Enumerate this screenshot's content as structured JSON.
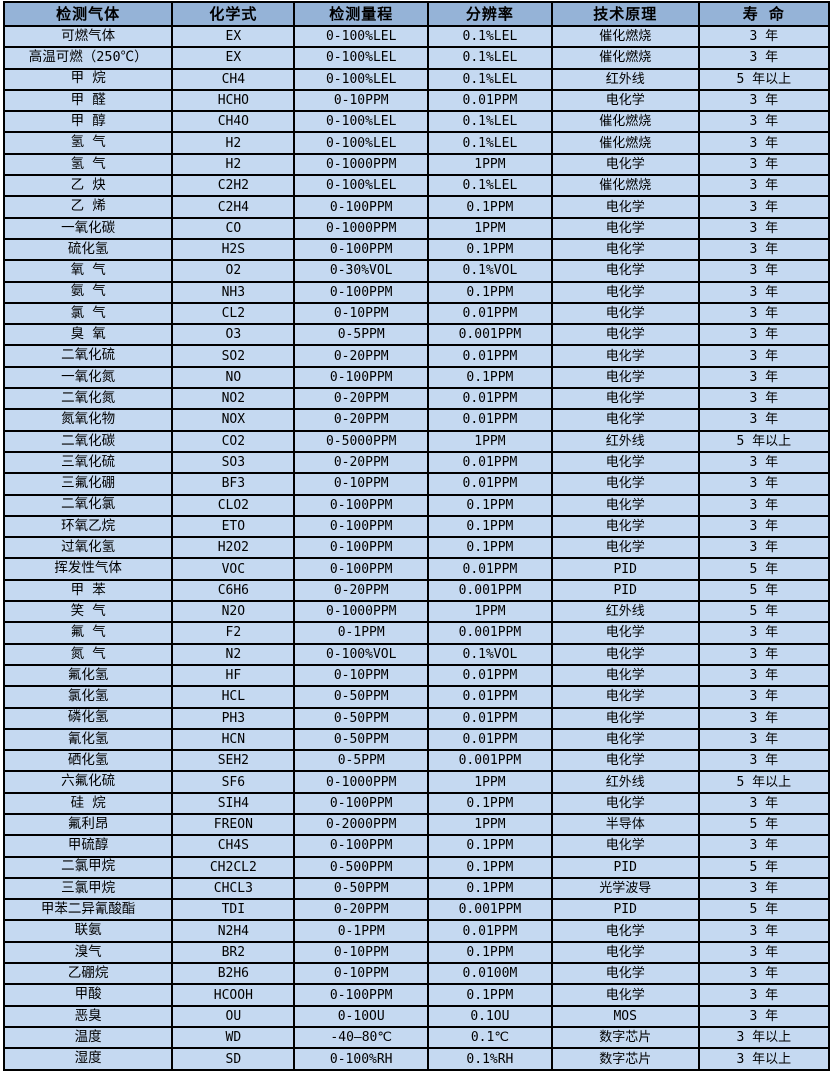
{
  "colors": {
    "header_bg": "#95b3d7",
    "row_bg": "#c5d9f1",
    "grid_border": "#000000",
    "text": "#000000"
  },
  "table": {
    "columns": [
      "检测气体",
      "化学式",
      "检测量程",
      "分辨率",
      "技术原理",
      "寿 命"
    ],
    "column_widths_pct": [
      20.4,
      14.8,
      16.2,
      15.0,
      17.8,
      15.8
    ],
    "rows": [
      [
        "可燃气体",
        "EX",
        "0-100%LEL",
        "0.1%LEL",
        "催化燃烧",
        "3 年"
      ],
      [
        "高温可燃（250℃）",
        "EX",
        "0-100%LEL",
        "0.1%LEL",
        "催化燃烧",
        "3 年"
      ],
      [
        "甲 烷",
        "CH4",
        "0-100%LEL",
        "0.1%LEL",
        "红外线",
        "5 年以上"
      ],
      [
        "甲 醛",
        "HCHO",
        "0-10PPM",
        "0.01PPM",
        "电化学",
        "3 年"
      ],
      [
        "甲 醇",
        "CH4O",
        "0-100%LEL",
        "0.1%LEL",
        "催化燃烧",
        "3 年"
      ],
      [
        "氢 气",
        "H2",
        "0-100%LEL",
        "0.1%LEL",
        "催化燃烧",
        "3 年"
      ],
      [
        "氢 气",
        "H2",
        "0-1000PPM",
        "1PPM",
        "电化学",
        "3 年"
      ],
      [
        "乙 炔",
        "C2H2",
        "0-100%LEL",
        "0.1%LEL",
        "催化燃烧",
        "3 年"
      ],
      [
        "乙 烯",
        "C2H4",
        "0-100PPM",
        "0.1PPM",
        "电化学",
        "3 年"
      ],
      [
        "一氧化碳",
        "CO",
        "0-1000PPM",
        "1PPM",
        "电化学",
        "3 年"
      ],
      [
        "硫化氢",
        "H2S",
        "0-100PPM",
        "0.1PPM",
        "电化学",
        "3 年"
      ],
      [
        "氧 气",
        "O2",
        "0-30%VOL",
        "0.1%VOL",
        "电化学",
        "3 年"
      ],
      [
        "氨 气",
        "NH3",
        "0-100PPM",
        "0.1PPM",
        "电化学",
        "3 年"
      ],
      [
        "氯 气",
        "CL2",
        "0-10PPM",
        "0.01PPM",
        "电化学",
        "3 年"
      ],
      [
        "臭 氧",
        "O3",
        "0-5PPM",
        "0.001PPM",
        "电化学",
        "3 年"
      ],
      [
        "二氧化硫",
        "SO2",
        "0-20PPM",
        "0.01PPM",
        "电化学",
        "3 年"
      ],
      [
        "一氧化氮",
        "NO",
        "0-100PPM",
        "0.1PPM",
        "电化学",
        "3 年"
      ],
      [
        "二氧化氮",
        "NO2",
        "0-20PPM",
        "0.01PPM",
        "电化学",
        "3 年"
      ],
      [
        "氮氧化物",
        "NOX",
        "0-20PPM",
        "0.01PPM",
        "电化学",
        "3 年"
      ],
      [
        "二氧化碳",
        "CO2",
        "0-5000PPM",
        "1PPM",
        "红外线",
        "5 年以上"
      ],
      [
        "三氧化硫",
        "SO3",
        "0-20PPM",
        "0.01PPM",
        "电化学",
        "3 年"
      ],
      [
        "三氟化硼",
        "BF3",
        "0-10PPM",
        "0.01PPM",
        "电化学",
        "3 年"
      ],
      [
        "二氧化氯",
        "CLO2",
        "0-100PPM",
        "0.1PPM",
        "电化学",
        "3 年"
      ],
      [
        "环氧乙烷",
        "ETO",
        "0-100PPM",
        "0.1PPM",
        "电化学",
        "3 年"
      ],
      [
        "过氧化氢",
        "H2O2",
        "0-100PPM",
        "0.1PPM",
        "电化学",
        "3 年"
      ],
      [
        "挥发性气体",
        "VOC",
        "0-100PPM",
        "0.01PPM",
        "PID",
        "5 年"
      ],
      [
        "甲 苯",
        "C6H6",
        "0-20PPM",
        "0.001PPM",
        "PID",
        "5 年"
      ],
      [
        "笑 气",
        "N2O",
        "0-1000PPM",
        "1PPM",
        "红外线",
        "5 年"
      ],
      [
        "氟 气",
        "F2",
        "0-1PPM",
        "0.001PPM",
        "电化学",
        "3 年"
      ],
      [
        "氮 气",
        "N2",
        "0-100%VOL",
        "0.1%VOL",
        "电化学",
        "3 年"
      ],
      [
        "氟化氢",
        "HF",
        "0-10PPM",
        "0.01PPM",
        "电化学",
        "3 年"
      ],
      [
        "氯化氢",
        "HCL",
        "0-50PPM",
        "0.01PPM",
        "电化学",
        "3 年"
      ],
      [
        "磷化氢",
        "PH3",
        "0-50PPM",
        "0.01PPM",
        "电化学",
        "3 年"
      ],
      [
        "氰化氢",
        "HCN",
        "0-50PPM",
        "0.01PPM",
        "电化学",
        "3 年"
      ],
      [
        "硒化氢",
        "SEH2",
        "0-5PPM",
        "0.001PPM",
        "电化学",
        "3 年"
      ],
      [
        "六氟化硫",
        "SF6",
        "0-1000PPM",
        "1PPM",
        "红外线",
        "5 年以上"
      ],
      [
        "硅 烷",
        "SIH4",
        "0-100PPM",
        "0.1PPM",
        "电化学",
        "3 年"
      ],
      [
        "氟利昂",
        "FREON",
        "0-2000PPM",
        "1PPM",
        "半导体",
        "5 年"
      ],
      [
        "甲硫醇",
        "CH4S",
        "0-100PPM",
        "0.1PPM",
        "电化学",
        "3 年"
      ],
      [
        "二氯甲烷",
        "CH2CL2",
        "0-500PPM",
        "0.1PPM",
        "PID",
        "5 年"
      ],
      [
        "三氯甲烷",
        "CHCL3",
        "0-50PPM",
        "0.1PPM",
        "光学波导",
        "3 年"
      ],
      [
        "甲苯二异氰酸酯",
        "TDI",
        "0-20PPM",
        "0.001PPM",
        "PID",
        "5 年"
      ],
      [
        "联氨",
        "N2H4",
        "0-1PPM",
        "0.01PPM",
        "电化学",
        "3 年"
      ],
      [
        "溴气",
        "BR2",
        "0-10PPM",
        "0.1PPM",
        "电化学",
        "3 年"
      ],
      [
        "乙硼烷",
        "B2H6",
        "0-10PPM",
        "0.0100M",
        "电化学",
        "3 年"
      ],
      [
        "甲酸",
        "HCOOH",
        "0-100PPM",
        "0.1PPM",
        "电化学",
        "3 年"
      ],
      [
        "恶臭",
        "OU",
        "0-10OU",
        "0.1OU",
        "MOS",
        "3 年"
      ],
      [
        "温度",
        "WD",
        "-40—80℃",
        "0.1℃",
        "数字芯片",
        "3 年以上"
      ],
      [
        "湿度",
        "SD",
        "0-100%RH",
        "0.1%RH",
        "数字芯片",
        "3 年以上"
      ]
    ]
  }
}
